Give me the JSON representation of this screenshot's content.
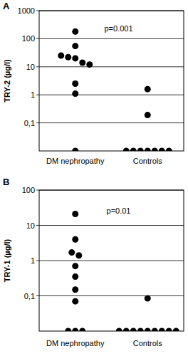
{
  "chart_data": [
    {
      "type": "scatter",
      "title": "A",
      "y_label": "TRY-2 (µg/l)",
      "annotation": "p=0.001",
      "categories": [
        "DM nephropathy",
        "Controls"
      ],
      "values": [
        [
          180,
          55,
          25,
          22,
          20,
          14,
          12,
          2.5,
          1.1,
          0.01
        ],
        [
          1.6,
          0.19,
          0.01,
          0.01,
          0.01,
          0.01,
          0.01,
          0.01,
          0.01
        ]
      ],
      "ylim": [
        0.01,
        1000
      ],
      "yticks": [
        {
          "value": 0.1,
          "label": "0,1"
        },
        1,
        10,
        100,
        1000
      ],
      "log": "y",
      "grid": true,
      "color": "#000000",
      "marker": "circle"
    },
    {
      "type": "scatter",
      "title": "B",
      "y_label": "TRY-1 (µg/l)",
      "annotation": "p=0.01",
      "categories": [
        "DM nephropathy",
        "Controls"
      ],
      "values": [
        [
          21,
          4,
          1.7,
          1.4,
          0.7,
          0.35,
          0.15,
          0.07,
          0.01,
          0.01,
          0.01
        ],
        [
          0.085,
          0.01,
          0.01,
          0.01,
          0.01,
          0.01,
          0.01,
          0.01,
          0.01,
          0.01
        ]
      ],
      "ylim": [
        0.01,
        100
      ],
      "yticks": [
        {
          "value": 0.1,
          "label": "0,1"
        },
        1,
        10,
        100
      ],
      "log": "y",
      "grid": true,
      "color": "#000000",
      "marker": "circle"
    }
  ]
}
